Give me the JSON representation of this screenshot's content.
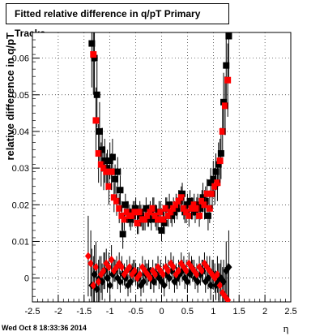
{
  "footer": {
    "timestamp": "Wed Oct  8 18:33:36 2014"
  },
  "chart_data": {
    "type": "scatter",
    "title": "Fitted relative difference in q/pT  Primary Tracks",
    "xlabel": "η",
    "ylabel": "relative difference in q/pT",
    "xlim": [
      -2.5,
      2.5
    ],
    "ylim": [
      -0.0065,
      0.067
    ],
    "xticks": [
      "-2.5",
      "-2",
      "-1.5",
      "-1",
      "-0.5",
      "0",
      "0.5",
      "1",
      "1.5",
      "2",
      "2.5"
    ],
    "yticks": [
      "0",
      "0.01",
      "0.02",
      "0.03",
      "0.04",
      "0.05",
      "0.06"
    ],
    "grid": true,
    "colors": {
      "black": "#000000",
      "red": "#ff0000"
    },
    "series": [
      {
        "color": "#000000",
        "marker": "square",
        "x": [
          -1.35,
          -1.3,
          -1.25,
          -1.2,
          -1.15,
          -1.1,
          -1.05,
          -1.0,
          -0.95,
          -0.9,
          -0.85,
          -0.8,
          -0.75,
          -0.7,
          -0.65,
          -0.6,
          -0.55,
          -0.5,
          -0.45,
          -0.4,
          -0.35,
          -0.3,
          -0.25,
          -0.2,
          -0.15,
          -0.1,
          -0.05,
          0.0,
          0.05,
          0.1,
          0.15,
          0.2,
          0.25,
          0.3,
          0.35,
          0.4,
          0.45,
          0.5,
          0.55,
          0.6,
          0.65,
          0.7,
          0.75,
          0.8,
          0.85,
          0.9,
          0.95,
          1.0,
          1.05,
          1.1,
          1.15,
          1.2,
          1.25,
          1.3
        ],
        "y": [
          0.064,
          0.06,
          0.05,
          0.04,
          0.035,
          0.032,
          0.03,
          0.032,
          0.033,
          0.027,
          0.029,
          0.024,
          0.012,
          0.02,
          0.018,
          0.016,
          0.018,
          0.019,
          0.015,
          0.017,
          0.016,
          0.019,
          0.017,
          0.016,
          0.019,
          0.016,
          0.018,
          0.013,
          0.015,
          0.019,
          0.02,
          0.017,
          0.018,
          0.019,
          0.021,
          0.023,
          0.018,
          0.02,
          0.021,
          0.019,
          0.018,
          0.02,
          0.019,
          0.022,
          0.021,
          0.017,
          0.026,
          0.027,
          0.029,
          0.031,
          0.034,
          0.048,
          0.058,
          0.066
        ],
        "err": [
          0.012,
          0.01,
          0.009,
          0.008,
          0.006,
          0.006,
          0.005,
          0.005,
          0.005,
          0.004,
          0.004,
          0.004,
          0.004,
          0.003,
          0.003,
          0.003,
          0.003,
          0.003,
          0.003,
          0.003,
          0.003,
          0.003,
          0.003,
          0.003,
          0.003,
          0.003,
          0.003,
          0.003,
          0.003,
          0.003,
          0.003,
          0.003,
          0.003,
          0.003,
          0.003,
          0.003,
          0.003,
          0.003,
          0.003,
          0.003,
          0.003,
          0.003,
          0.003,
          0.004,
          0.004,
          0.004,
          0.004,
          0.005,
          0.005,
          0.006,
          0.007,
          0.008,
          0.01,
          0.012
        ]
      },
      {
        "color": "#ff0000",
        "marker": "square",
        "x": [
          -1.32,
          -1.27,
          -1.22,
          -1.17,
          -1.12,
          -1.07,
          -1.02,
          -0.97,
          -0.92,
          -0.87,
          -0.82,
          -0.77,
          -0.72,
          -0.67,
          -0.62,
          -0.57,
          -0.52,
          -0.47,
          -0.42,
          -0.37,
          -0.32,
          -0.27,
          -0.22,
          -0.17,
          -0.12,
          -0.07,
          -0.02,
          0.03,
          0.08,
          0.13,
          0.18,
          0.23,
          0.28,
          0.33,
          0.38,
          0.43,
          0.48,
          0.53,
          0.58,
          0.63,
          0.68,
          0.73,
          0.78,
          0.83,
          0.88,
          0.93,
          0.98,
          1.03,
          1.08,
          1.13,
          1.18,
          1.23,
          1.28
        ],
        "y": [
          0.061,
          0.043,
          0.034,
          0.031,
          0.03,
          0.029,
          0.025,
          0.029,
          0.022,
          0.021,
          0.019,
          0.017,
          0.016,
          0.018,
          0.017,
          0.017,
          0.018,
          0.015,
          0.018,
          0.016,
          0.016,
          0.017,
          0.018,
          0.019,
          0.017,
          0.016,
          0.018,
          0.016,
          0.019,
          0.017,
          0.018,
          0.019,
          0.02,
          0.021,
          0.022,
          0.019,
          0.018,
          0.017,
          0.019,
          0.02,
          0.019,
          0.017,
          0.021,
          0.02,
          0.023,
          0.019,
          0.023,
          0.025,
          0.026,
          0.032,
          0.04,
          0.047,
          0.054
        ],
        "err": [
          0.011,
          0.009,
          0.008,
          0.006,
          0.006,
          0.005,
          0.005,
          0.005,
          0.004,
          0.004,
          0.004,
          0.004,
          0.003,
          0.003,
          0.003,
          0.003,
          0.003,
          0.003,
          0.003,
          0.003,
          0.003,
          0.003,
          0.003,
          0.003,
          0.003,
          0.003,
          0.003,
          0.003,
          0.003,
          0.003,
          0.003,
          0.003,
          0.003,
          0.003,
          0.003,
          0.003,
          0.003,
          0.003,
          0.003,
          0.003,
          0.003,
          0.003,
          0.003,
          0.004,
          0.004,
          0.004,
          0.004,
          0.005,
          0.005,
          0.006,
          0.007,
          0.008,
          0.01
        ]
      },
      {
        "color": "#000000",
        "marker": "diamond",
        "x": [
          -1.35,
          -1.3,
          -1.25,
          -1.2,
          -1.15,
          -1.1,
          -1.05,
          -1.0,
          -0.95,
          -0.9,
          -0.85,
          -0.8,
          -0.75,
          -0.7,
          -0.65,
          -0.6,
          -0.55,
          -0.5,
          -0.45,
          -0.4,
          -0.35,
          -0.3,
          -0.25,
          -0.2,
          -0.15,
          -0.1,
          -0.05,
          0.0,
          0.05,
          0.1,
          0.15,
          0.2,
          0.25,
          0.3,
          0.35,
          0.4,
          0.45,
          0.5,
          0.55,
          0.6,
          0.65,
          0.7,
          0.75,
          0.8,
          0.85,
          0.9,
          0.95,
          1.0,
          1.05,
          1.1,
          1.15,
          1.2,
          1.25,
          1.3
        ],
        "y": [
          -0.002,
          0.001,
          -0.003,
          0.0,
          -0.001,
          0.002,
          0.0,
          -0.002,
          0.001,
          0.002,
          0.0,
          -0.001,
          0.001,
          0.0,
          -0.002,
          -0.001,
          0.002,
          0.001,
          0.0,
          -0.002,
          -0.001,
          0.001,
          0.002,
          0.0,
          -0.001,
          0.001,
          0.0,
          -0.001,
          -0.002,
          0.001,
          0.0,
          0.002,
          -0.001,
          0.0,
          0.001,
          0.002,
          0.0,
          -0.001,
          0.001,
          0.002,
          0.0,
          -0.001,
          0.001,
          0.002,
          -0.001,
          0.0,
          -0.002,
          0.001,
          -0.002,
          -0.001,
          0.0,
          -0.001,
          0.002,
          0.003
        ],
        "err": [
          0.01,
          0.008,
          0.007,
          0.006,
          0.005,
          0.005,
          0.004,
          0.004,
          0.004,
          0.003,
          0.003,
          0.003,
          0.003,
          0.003,
          0.003,
          0.003,
          0.003,
          0.003,
          0.003,
          0.003,
          0.003,
          0.003,
          0.003,
          0.003,
          0.003,
          0.003,
          0.003,
          0.003,
          0.003,
          0.003,
          0.003,
          0.003,
          0.003,
          0.003,
          0.003,
          0.003,
          0.003,
          0.003,
          0.003,
          0.003,
          0.003,
          0.003,
          0.003,
          0.003,
          0.003,
          0.003,
          0.004,
          0.004,
          0.004,
          0.005,
          0.005,
          0.006,
          0.008,
          0.01
        ]
      },
      {
        "color": "#ff0000",
        "marker": "diamond",
        "x": [
          -1.42,
          -1.37,
          -1.32,
          -1.27,
          -1.22,
          -1.17,
          -1.12,
          -1.07,
          -1.02,
          -0.97,
          -0.92,
          -0.87,
          -0.82,
          -0.77,
          -0.72,
          -0.67,
          -0.62,
          -0.57,
          -0.52,
          -0.47,
          -0.42,
          -0.37,
          -0.32,
          -0.27,
          -0.22,
          -0.17,
          -0.12,
          -0.07,
          -0.02,
          0.03,
          0.08,
          0.13,
          0.18,
          0.23,
          0.28,
          0.33,
          0.38,
          0.43,
          0.48,
          0.53,
          0.58,
          0.63,
          0.68,
          0.73,
          0.78,
          0.83,
          0.88,
          0.93,
          0.98,
          1.03,
          1.08,
          1.13,
          1.18,
          1.23,
          1.28
        ],
        "y": [
          0.006,
          0.004,
          -0.002,
          0.003,
          -0.001,
          0.001,
          0.002,
          0.004,
          0.003,
          0.005,
          0.002,
          0.003,
          0.004,
          0.003,
          0.001,
          0.002,
          0.003,
          0.001,
          0.002,
          0.0,
          0.001,
          0.003,
          0.002,
          0.001,
          0.0,
          0.002,
          0.001,
          0.003,
          0.002,
          0.001,
          0.003,
          0.002,
          0.004,
          0.003,
          0.001,
          0.002,
          0.004,
          0.003,
          0.002,
          0.004,
          0.003,
          0.002,
          0.001,
          0.003,
          0.002,
          0.004,
          0.003,
          0.002,
          0.001,
          0.0,
          0.001,
          -0.002,
          -0.004,
          -0.005,
          -0.006
        ],
        "err": [
          0.011,
          0.009,
          0.008,
          0.007,
          0.006,
          0.005,
          0.005,
          0.004,
          0.004,
          0.004,
          0.003,
          0.003,
          0.003,
          0.003,
          0.003,
          0.003,
          0.003,
          0.003,
          0.003,
          0.003,
          0.003,
          0.003,
          0.003,
          0.003,
          0.003,
          0.003,
          0.003,
          0.003,
          0.003,
          0.003,
          0.003,
          0.003,
          0.003,
          0.003,
          0.003,
          0.003,
          0.003,
          0.003,
          0.003,
          0.003,
          0.003,
          0.003,
          0.003,
          0.003,
          0.003,
          0.003,
          0.003,
          0.004,
          0.004,
          0.004,
          0.005,
          0.006,
          0.007,
          0.008,
          0.01
        ]
      }
    ]
  }
}
